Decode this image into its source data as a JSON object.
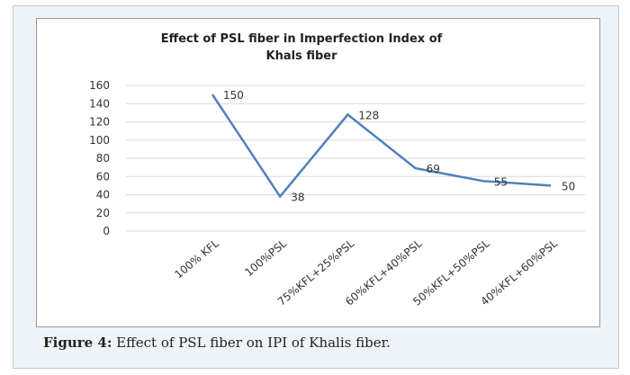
{
  "chart_data": {
    "type": "line",
    "title": "Effect of PSL fiber in Imperfection Index of Khals fiber",
    "categories": [
      "100% KFL",
      "100%PSL",
      "75%KFL+25%PSL",
      "60%KFL+40%PSL",
      "50%KFL+50%PSL",
      "40%KFL+60%PSL"
    ],
    "values": [
      150,
      38,
      128,
      69,
      55,
      50
    ],
    "color": "#4f81bd",
    "ylim": [
      0,
      160
    ],
    "yticks": [
      0,
      20,
      40,
      60,
      80,
      100,
      120,
      140,
      160
    ],
    "grid": true
  },
  "caption": {
    "label": "Figure 4:",
    "text": "Effect of PSL fiber on IPI of Khalis fiber."
  }
}
